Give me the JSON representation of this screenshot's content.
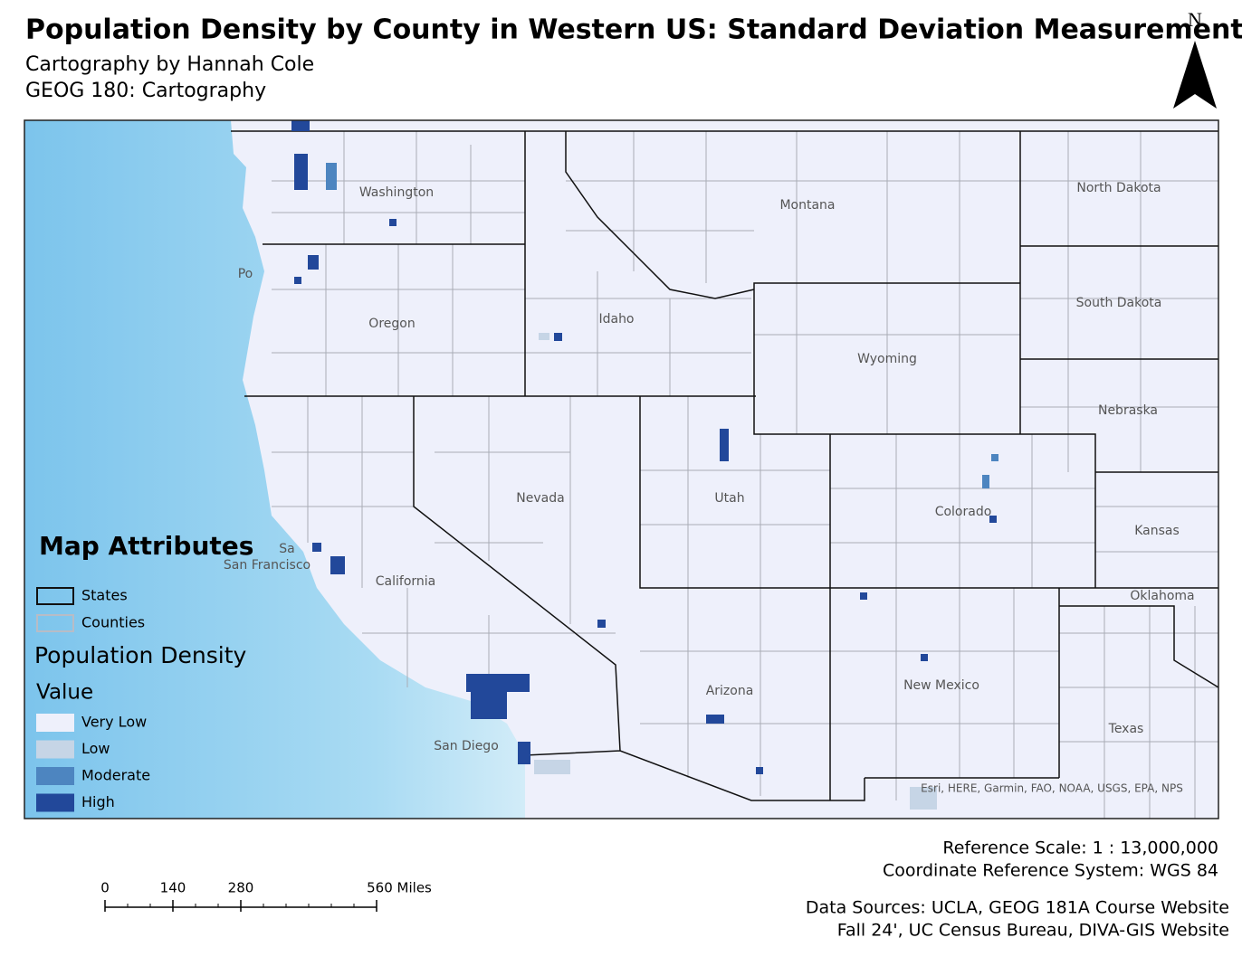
{
  "header": {
    "title": "Population Density by County in Western US: Standard Deviation Measurement",
    "subtitle_1": "Cartography by Hannah Cole",
    "subtitle_2": "GEOG 180: Cartography",
    "north": "N"
  },
  "map": {
    "labels": [
      "Washington",
      "Montana",
      "North Dakota",
      "South Dakota",
      "Oregon",
      "Idaho",
      "Wyoming",
      "Nebraska",
      "Nevada",
      "Utah",
      "Colorado",
      "Kansas",
      "California",
      "Oklahoma",
      "Arizona",
      "New Mexico",
      "Texas",
      "San Francisco",
      "San Diego",
      "Po",
      "Sa"
    ],
    "attribution": "Esri, HERE, Garmin, FAO, NOAA, USGS, EPA, NPS"
  },
  "legend": {
    "title": "Map Attributes",
    "line_items": [
      {
        "label": "States",
        "color": "#111111"
      },
      {
        "label": "Counties",
        "color": "#b8bcc6"
      }
    ],
    "field": "Population Density",
    "subheading": "Value",
    "classes": [
      {
        "label": "Very Low",
        "color": "#eef0fb"
      },
      {
        "label": "Low",
        "color": "#c6d5e6"
      },
      {
        "label": "Moderate",
        "color": "#4d85c0"
      },
      {
        "label": "High",
        "color": "#22489a"
      }
    ]
  },
  "scale_bar": {
    "ticks": [
      0,
      140,
      280,
      {
        "value": 560,
        "label": "560 Miles"
      }
    ]
  },
  "footer": {
    "reference_scale": "Reference Scale:  1 : 13,000,000",
    "crs": "Coordinate Reference System: WGS 84",
    "sources_1": "Data Sources: UCLA, GEOG 181A Course Website",
    "sources_2": "Fall 24', UC Census Bureau, DIVA-GIS Website"
  }
}
